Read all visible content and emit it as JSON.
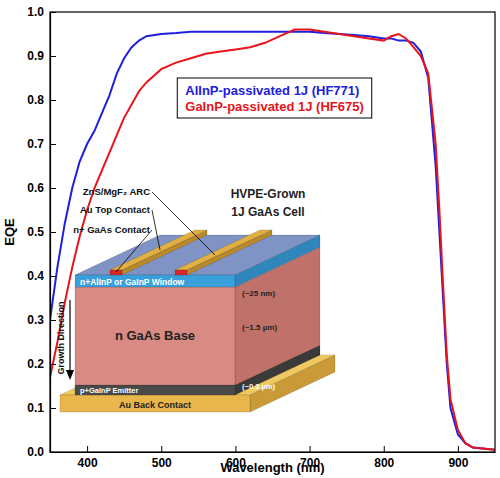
{
  "chart_data": {
    "type": "line",
    "x_label": "Wavelength (nm)",
    "y_label": "EQE",
    "x": [
      350,
      360,
      370,
      380,
      390,
      400,
      410,
      420,
      430,
      440,
      450,
      460,
      470,
      480,
      500,
      520,
      540,
      560,
      580,
      600,
      620,
      640,
      660,
      680,
      700,
      720,
      740,
      760,
      780,
      800,
      810,
      820,
      830,
      840,
      850,
      860,
      870,
      875,
      880,
      885,
      890,
      900,
      910,
      920,
      950
    ],
    "series": [
      {
        "name": "AlInP-passivated 1J (HF771)",
        "color": "#2020dc",
        "values": [
          0.3,
          0.42,
          0.52,
          0.6,
          0.66,
          0.7,
          0.73,
          0.77,
          0.81,
          0.86,
          0.895,
          0.92,
          0.935,
          0.945,
          0.95,
          0.952,
          0.955,
          0.955,
          0.955,
          0.955,
          0.955,
          0.955,
          0.955,
          0.955,
          0.955,
          0.952,
          0.95,
          0.948,
          0.945,
          0.94,
          0.94,
          0.935,
          0.935,
          0.93,
          0.91,
          0.85,
          0.65,
          0.5,
          0.35,
          0.2,
          0.1,
          0.04,
          0.02,
          0.01,
          0.005
        ]
      },
      {
        "name": "GaInP-passivated 1J (HF675)",
        "color": "#e8141c",
        "values": [
          0.17,
          0.25,
          0.34,
          0.42,
          0.49,
          0.55,
          0.6,
          0.64,
          0.68,
          0.72,
          0.76,
          0.79,
          0.82,
          0.84,
          0.87,
          0.885,
          0.895,
          0.905,
          0.91,
          0.915,
          0.92,
          0.93,
          0.945,
          0.96,
          0.96,
          0.955,
          0.95,
          0.945,
          0.94,
          0.935,
          0.945,
          0.95,
          0.94,
          0.92,
          0.9,
          0.86,
          0.7,
          0.55,
          0.38,
          0.22,
          0.12,
          0.05,
          0.02,
          0.01,
          0.005
        ]
      }
    ],
    "xlim": [
      350,
      950
    ],
    "xticks": [
      400,
      500,
      600,
      700,
      800,
      900
    ],
    "ylim": [
      0,
      1
    ],
    "yticks": [
      {
        "value": 0,
        "label": "0.0"
      },
      0.1,
      0.2,
      0.3,
      0.4,
      0.5,
      0.6,
      0.7,
      0.8,
      0.9,
      {
        "value": 1,
        "label": "1.0"
      }
    ],
    "grid": false,
    "legend": "top",
    "annotations": [
      "ZnS/MgF₂ ARC",
      "Au Top Contact",
      "n+ GaAs Contact",
      "HVPE-Grown",
      "1J GaAs Cell",
      "Growth Direction",
      "n+AlInP or GaInP Window",
      "(~25 nm)",
      "n GaAs Base",
      "(~1.5 µm)",
      "p+GaInP Emitter",
      "(~0.3 µm)",
      "Au Back Contact"
    ]
  }
}
